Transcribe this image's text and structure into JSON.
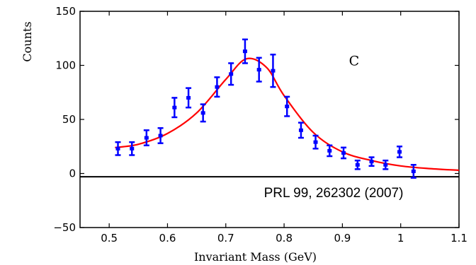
{
  "chart_data": {
    "type": "scatter",
    "title": "",
    "xlabel": "Invariant Mass (GeV)",
    "ylabel": "Counts",
    "xlim": [
      0.45,
      1.1
    ],
    "ylim": [
      -50,
      150
    ],
    "xticks": [
      "0.5",
      "0.6",
      "0.7",
      "0.8",
      "0.9",
      "1",
      "1.1"
    ],
    "yticks": [
      "150",
      "100",
      "50",
      "0",
      "−50"
    ],
    "xtick_values": [
      0.5,
      0.6,
      0.7,
      0.8,
      0.9,
      1.0,
      1.1
    ],
    "ytick_values": [
      150,
      100,
      50,
      0,
      -50
    ],
    "series": [
      {
        "kind": "error_points",
        "color": "#0000ff",
        "points": [
          {
            "x": 0.515,
            "y": 23,
            "err": 6
          },
          {
            "x": 0.539,
            "y": 23,
            "err": 6
          },
          {
            "x": 0.564,
            "y": 33,
            "err": 7
          },
          {
            "x": 0.588,
            "y": 35,
            "err": 7
          },
          {
            "x": 0.612,
            "y": 61,
            "err": 9
          },
          {
            "x": 0.636,
            "y": 70,
            "err": 9
          },
          {
            "x": 0.661,
            "y": 56,
            "err": 8
          },
          {
            "x": 0.685,
            "y": 80,
            "err": 9
          },
          {
            "x": 0.709,
            "y": 92,
            "err": 10
          },
          {
            "x": 0.733,
            "y": 113,
            "err": 11
          },
          {
            "x": 0.757,
            "y": 96,
            "err": 11
          },
          {
            "x": 0.781,
            "y": 95,
            "err": 15
          },
          {
            "x": 0.805,
            "y": 62,
            "err": 9
          },
          {
            "x": 0.829,
            "y": 40,
            "err": 7
          },
          {
            "x": 0.854,
            "y": 29,
            "err": 6
          },
          {
            "x": 0.878,
            "y": 21,
            "err": 5
          },
          {
            "x": 0.902,
            "y": 19,
            "err": 5
          },
          {
            "x": 0.926,
            "y": 8,
            "err": 4
          },
          {
            "x": 0.95,
            "y": 11,
            "err": 4
          },
          {
            "x": 0.974,
            "y": 8,
            "err": 4
          },
          {
            "x": 0.998,
            "y": 20,
            "err": 5
          },
          {
            "x": 1.022,
            "y": 2,
            "err": 6
          }
        ]
      },
      {
        "kind": "fit_curve",
        "color": "#ff0000",
        "x": [
          0.51,
          0.55,
          0.6,
          0.65,
          0.7,
          0.735,
          0.77,
          0.8,
          0.85,
          0.9,
          0.95,
          1.0,
          1.05,
          1.1
        ],
        "y": [
          24,
          27,
          37,
          56,
          87,
          106,
          98,
          72,
          38,
          20,
          12,
          7,
          4.5,
          3
        ]
      }
    ],
    "hlines": [
      {
        "y": -3,
        "color": "#000000"
      }
    ],
    "annotations": [
      {
        "text": "C",
        "x": 0.92,
        "y": 100
      },
      {
        "text": "PRL 99, 262302 (2007)",
        "x": 0.885,
        "y": -22
      }
    ],
    "grid": false
  }
}
